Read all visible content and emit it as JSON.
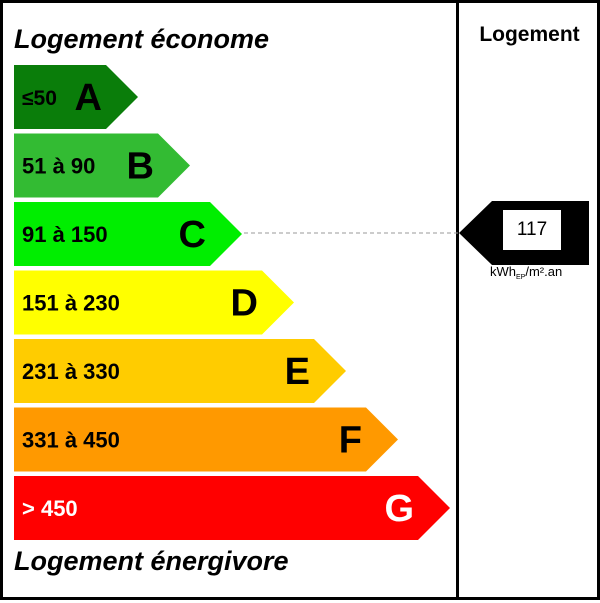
{
  "header": {
    "efficient_title": "Logement économe",
    "inefficient_title": "Logement énergivore",
    "column_title": "Logement"
  },
  "classes": [
    {
      "range": "≤50",
      "letter": "A",
      "color": "#0a7d0a",
      "text_color": "#000000"
    },
    {
      "range": "51 à 90",
      "letter": "B",
      "color": "#33bb33",
      "text_color": "#000000"
    },
    {
      "range": "91 à 150",
      "letter": "C",
      "color": "#00ee00",
      "text_color": "#000000"
    },
    {
      "range": "151 à 230",
      "letter": "D",
      "color": "#ffff00",
      "text_color": "#000000"
    },
    {
      "range": "231 à 330",
      "letter": "E",
      "color": "#ffcc00",
      "text_color": "#000000"
    },
    {
      "range": "331 à 450",
      "letter": "F",
      "color": "#ff9900",
      "text_color": "#000000"
    },
    {
      "range": "> 450",
      "letter": "G",
      "color": "#ff0000",
      "text_color": "#ffffff"
    }
  ],
  "result": {
    "value": "117",
    "class_letter": "C",
    "unit_prefix": "kWh",
    "unit_sub": "EP",
    "unit_suffix": "/m².an"
  }
}
